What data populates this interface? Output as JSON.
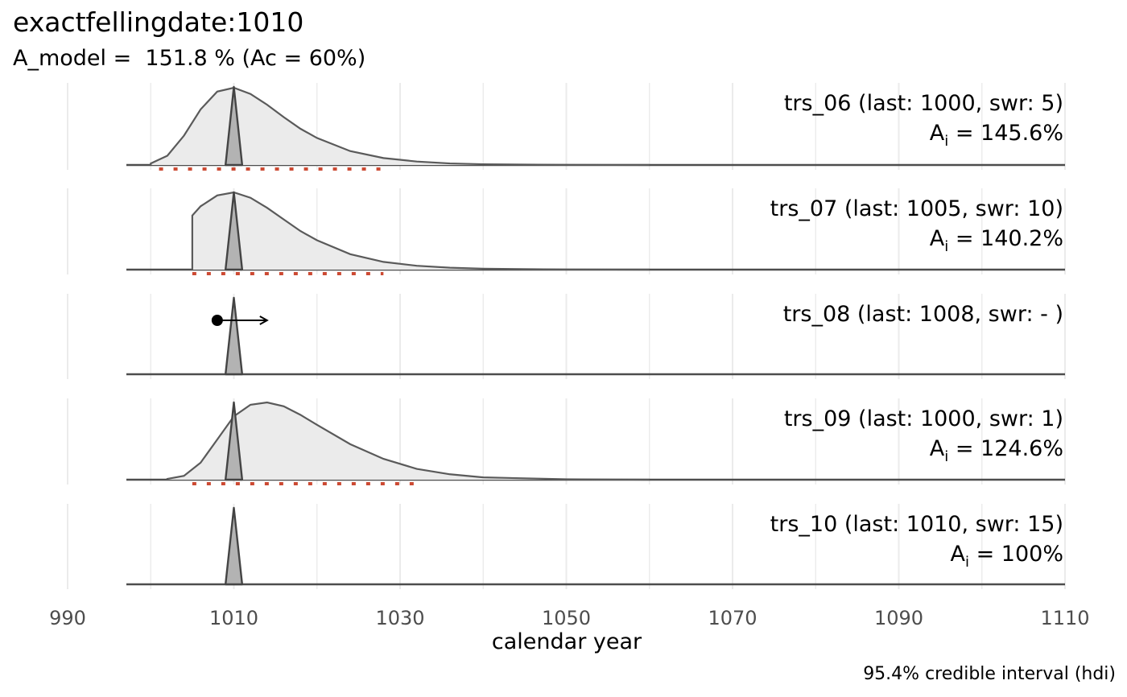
{
  "title": "exactfellingdate:1010",
  "subtitle": "A_model =  151.8 % (Ac = 60%)",
  "caption": "95.4% credible interval (hdi)",
  "chart_data": {
    "type": "area",
    "xlabel": "calendar year",
    "xlim": [
      990,
      1110
    ],
    "xticks": [
      990,
      1010,
      1030,
      1050,
      1070,
      1090,
      1110
    ],
    "grid": true,
    "felling_date": 1010,
    "A_model_percent": 151.8,
    "Ac_percent": 60,
    "panels": [
      {
        "series": "trs_06",
        "last": 1000,
        "swr": "5",
        "label": "trs_06 (last: 1000, swr: 5)",
        "A_i": "145.6%",
        "density": {
          "start": 1000,
          "x": [
            1000,
            1002,
            1004,
            1006,
            1008,
            1010,
            1012,
            1014,
            1016,
            1018,
            1020,
            1024,
            1028,
            1032,
            1036,
            1040,
            1050,
            1060
          ],
          "y": [
            0.02,
            0.12,
            0.38,
            0.72,
            0.95,
            1.0,
            0.92,
            0.78,
            0.62,
            0.47,
            0.35,
            0.18,
            0.09,
            0.045,
            0.02,
            0.01,
            0.002,
            0
          ]
        },
        "hdi": [
          1001,
          1028
        ]
      },
      {
        "series": "trs_07",
        "last": 1005,
        "swr": "10",
        "label": "trs_07 (last: 1005, swr: 10)",
        "A_i": "140.2%",
        "density": {
          "start": 1005,
          "x": [
            1005,
            1006,
            1008,
            1010,
            1012,
            1014,
            1016,
            1018,
            1020,
            1024,
            1028,
            1032,
            1036,
            1040,
            1050,
            1060
          ],
          "y": [
            0.7,
            0.82,
            0.96,
            1.0,
            0.93,
            0.8,
            0.65,
            0.5,
            0.38,
            0.2,
            0.1,
            0.05,
            0.025,
            0.012,
            0.002,
            0
          ]
        },
        "hdi": [
          1005,
          1028
        ]
      },
      {
        "series": "trs_08",
        "last": 1008,
        "swr": "- ",
        "label": "trs_08 (last: 1008, swr: - )",
        "A_i": "",
        "arrow": {
          "from": 1008,
          "to": 1014
        }
      },
      {
        "series": "trs_09",
        "last": 1000,
        "swr": "1",
        "label": "trs_09 (last: 1000, swr: 1)",
        "A_i": "124.6%",
        "density": {
          "start": 1002,
          "x": [
            1002,
            1004,
            1006,
            1008,
            1010,
            1012,
            1014,
            1016,
            1018,
            1020,
            1024,
            1028,
            1032,
            1036,
            1040,
            1050,
            1060
          ],
          "y": [
            0.01,
            0.05,
            0.22,
            0.52,
            0.82,
            0.97,
            1.0,
            0.95,
            0.84,
            0.71,
            0.46,
            0.27,
            0.14,
            0.07,
            0.03,
            0.005,
            0
          ]
        },
        "hdi": [
          1005,
          1032
        ]
      },
      {
        "series": "trs_10",
        "last": 1010,
        "swr": "15",
        "label": "trs_10 (last: 1010, swr: 15)",
        "A_i": "100%"
      }
    ]
  },
  "colors": {
    "density_fill": "#ebebeb",
    "density_line": "#5a5a5a",
    "spike_fill": "#b3b3b3",
    "spike_line": "#444444",
    "baseline": "#4d4d4d",
    "hdi": "#cc4a33",
    "grid": "#ebebeb",
    "tick_text": "#4d4d4d"
  }
}
